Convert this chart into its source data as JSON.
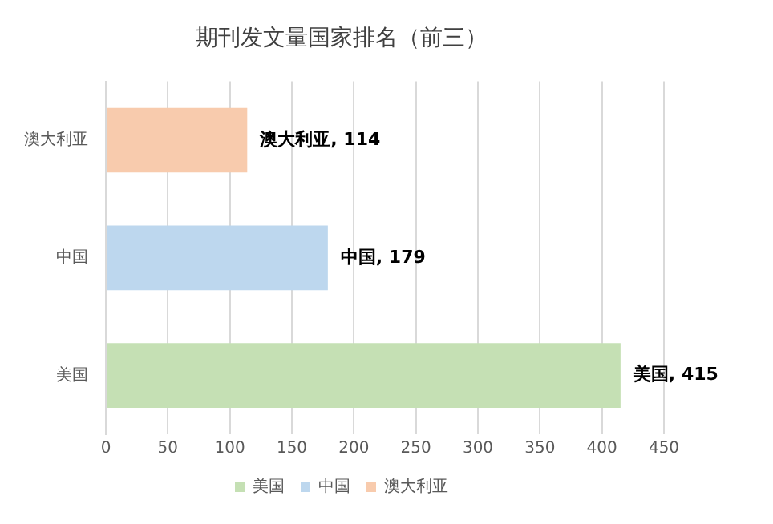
{
  "chart_data": {
    "type": "bar",
    "orientation": "horizontal",
    "title": "期刊发文量国家排名（前三）",
    "categories": [
      "澳大利亚",
      "中国",
      "美国"
    ],
    "series": [
      {
        "name": "美国",
        "color": "#c5e0b4",
        "values": [
          null,
          null,
          415
        ],
        "value_labels": [
          null,
          null,
          "美国, 415"
        ]
      },
      {
        "name": "中国",
        "color": "#bdd7ee",
        "values": [
          null,
          179,
          null
        ],
        "value_labels": [
          null,
          "中国, 179",
          null
        ]
      },
      {
        "name": "澳大利亚",
        "color": "#f8cbad",
        "values": [
          114,
          null,
          null
        ],
        "value_labels": [
          "澳大利亚, 114",
          null,
          null
        ]
      }
    ],
    "xlim": [
      0,
      450
    ],
    "xticks": [
      0,
      50,
      100,
      150,
      200,
      250,
      300,
      350,
      400,
      450
    ],
    "grid": "x",
    "legend": "bottom"
  }
}
